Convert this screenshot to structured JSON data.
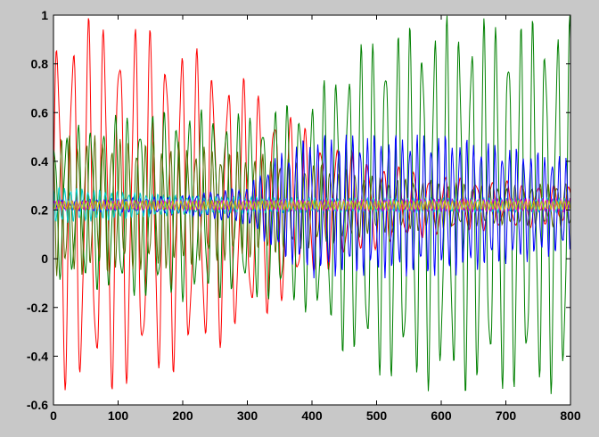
{
  "chart_data": {
    "type": "line",
    "title": "",
    "xlabel": "",
    "ylabel": "",
    "xlim": [
      0,
      800
    ],
    "ylim": [
      -0.6,
      1
    ],
    "xticks": [
      0,
      100,
      200,
      300,
      400,
      500,
      600,
      700,
      800
    ],
    "yticks": [
      -0.6,
      -0.4,
      -0.2,
      0,
      0.2,
      0.4,
      0.6,
      0.8,
      1
    ],
    "xtick_labels": [
      "0",
      "100",
      "200",
      "300",
      "400",
      "500",
      "600",
      "700",
      "800"
    ],
    "ytick_labels": [
      "-0.6",
      "-0.4",
      "-0.2",
      "0",
      "0.2",
      "0.4",
      "0.6",
      "0.8",
      "1"
    ],
    "grid": false,
    "baseline": 0.22,
    "series": [
      {
        "color": "#ff0000",
        "envelope": [
          [
            0,
            0.75
          ],
          [
            50,
            0.78
          ],
          [
            100,
            0.78
          ],
          [
            150,
            0.74
          ],
          [
            200,
            0.68
          ],
          [
            250,
            0.6
          ],
          [
            300,
            0.52
          ],
          [
            350,
            0.42
          ],
          [
            400,
            0.3
          ],
          [
            500,
            0.18
          ],
          [
            600,
            0.12
          ],
          [
            700,
            0.1
          ],
          [
            800,
            0.08
          ]
        ],
        "period": 24,
        "phase": 0.0
      },
      {
        "color": "#008000",
        "envelope": [
          [
            0,
            0.3
          ],
          [
            100,
            0.38
          ],
          [
            200,
            0.4
          ],
          [
            300,
            0.38
          ],
          [
            400,
            0.45
          ],
          [
            450,
            0.62
          ],
          [
            500,
            0.72
          ],
          [
            600,
            0.78
          ],
          [
            700,
            0.78
          ],
          [
            800,
            0.78
          ]
        ],
        "period": 19,
        "phase": 1.3
      },
      {
        "color": "#556b00",
        "envelope": [
          [
            0,
            0.3
          ],
          [
            100,
            0.28
          ],
          [
            200,
            0.26
          ],
          [
            300,
            0.22
          ],
          [
            400,
            0.18
          ],
          [
            500,
            0.12
          ],
          [
            600,
            0.1
          ],
          [
            700,
            0.08
          ],
          [
            800,
            0.1
          ]
        ],
        "period": 13,
        "phase": 2.1
      },
      {
        "color": "#0000ff",
        "envelope": [
          [
            0,
            0.02
          ],
          [
            200,
            0.04
          ],
          [
            300,
            0.08
          ],
          [
            350,
            0.22
          ],
          [
            400,
            0.3
          ],
          [
            500,
            0.3
          ],
          [
            600,
            0.3
          ],
          [
            700,
            0.25
          ],
          [
            800,
            0.2
          ]
        ],
        "period": 11,
        "phase": 0.7
      },
      {
        "color": "#00cccc",
        "envelope": [
          [
            0,
            0.08
          ],
          [
            100,
            0.06
          ],
          [
            200,
            0.04
          ],
          [
            400,
            0.03
          ],
          [
            800,
            0.03
          ]
        ],
        "period": 9,
        "phase": 1.9
      },
      {
        "color": "#cc00cc",
        "envelope": [
          [
            0,
            0.02
          ],
          [
            800,
            0.03
          ]
        ],
        "period": 7,
        "phase": 0.4
      },
      {
        "color": "#cccc00",
        "envelope": [
          [
            0,
            0.02
          ],
          [
            800,
            0.02
          ]
        ],
        "period": 6,
        "phase": 2.6
      }
    ]
  }
}
